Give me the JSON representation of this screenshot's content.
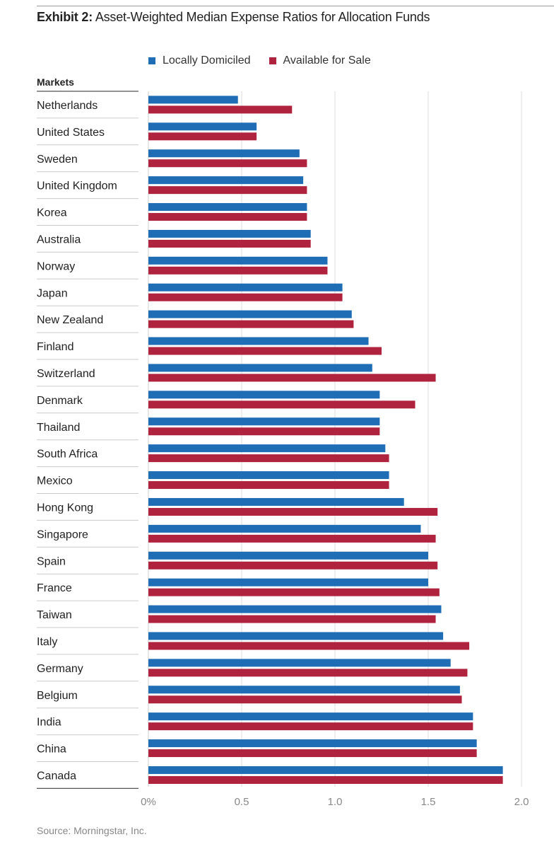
{
  "title": {
    "lead": "Exhibit 2:",
    "rest": " Asset-Weighted Median Expense Ratios for Allocation Funds"
  },
  "source": "Source: Morningstar, Inc.",
  "chart_data": {
    "type": "bar",
    "orientation": "horizontal",
    "category_header": "Markets",
    "categories": [
      "Netherlands",
      "United States",
      "Sweden",
      "United Kingdom",
      "Korea",
      "Australia",
      "Norway",
      "Japan",
      "New Zealand",
      "Finland",
      "Switzerland",
      "Denmark",
      "Thailand",
      "South Africa",
      "Mexico",
      "Hong Kong",
      "Singapore",
      "Spain",
      "France",
      "Taiwan",
      "Italy",
      "Germany",
      "Belgium",
      "India",
      "China",
      "Canada"
    ],
    "series": [
      {
        "name": "Locally Domiciled",
        "color": "#1f6db5",
        "values": [
          0.48,
          0.58,
          0.81,
          0.83,
          0.85,
          0.87,
          0.96,
          1.04,
          1.09,
          1.18,
          1.2,
          1.24,
          1.24,
          1.27,
          1.29,
          1.37,
          1.46,
          1.5,
          1.5,
          1.57,
          1.58,
          1.62,
          1.67,
          1.74,
          1.76,
          1.9
        ]
      },
      {
        "name": "Available for Sale",
        "color": "#b0233f",
        "values": [
          0.77,
          0.58,
          0.85,
          0.85,
          0.85,
          0.87,
          0.96,
          1.04,
          1.1,
          1.25,
          1.54,
          1.43,
          1.24,
          1.29,
          1.29,
          1.55,
          1.54,
          1.55,
          1.56,
          1.54,
          1.72,
          1.71,
          1.68,
          1.74,
          1.76,
          1.9
        ]
      }
    ],
    "xlim": [
      0,
      2.0
    ],
    "x_ticks": [
      0,
      0.5,
      1.0,
      1.5,
      2.0
    ],
    "x_tick_labels": [
      "0%",
      "0.5",
      "1.0",
      "1.5",
      "2.0"
    ],
    "grid": true,
    "legend": "top"
  }
}
